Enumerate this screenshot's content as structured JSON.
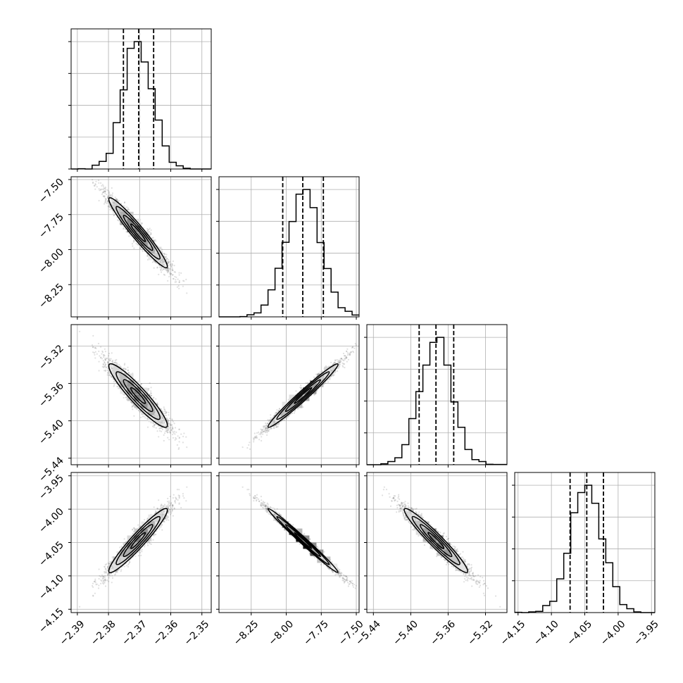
{
  "chart_data": {
    "type": "corner",
    "parameters": [
      {
        "id": "p0",
        "mean": -2.3705,
        "sd": 0.0047,
        "lim": [
          -2.392,
          -2.347
        ],
        "ticks": [
          -2.39,
          -2.38,
          -2.37,
          -2.36,
          -2.35
        ],
        "tick_labels": [
          "−2.39",
          "−2.38",
          "−2.37",
          "−2.36",
          "−2.35"
        ],
        "quantiles": [
          -2.3752,
          -2.3703,
          -2.3655
        ]
      },
      {
        "id": "p1",
        "mean": -7.88,
        "sd": 0.125,
        "lim": [
          -8.48,
          -7.48
        ],
        "ticks": [
          -8.25,
          -8.0,
          -7.75,
          -7.5
        ],
        "tick_labels": [
          "−8.25",
          "−8.00",
          "−7.75",
          "−7.50"
        ],
        "quantiles": [
          -8.025,
          -7.882,
          -7.735
        ]
      },
      {
        "id": "p2",
        "mean": -5.373,
        "sd": 0.017,
        "lim": [
          -5.447,
          -5.297
        ],
        "ticks": [
          -5.44,
          -5.4,
          -5.36,
          -5.32
        ],
        "tick_labels": [
          "−5.44",
          "−5.40",
          "−5.36",
          "−5.32"
        ],
        "quantiles": [
          -5.391,
          -5.373,
          -5.354
        ]
      },
      {
        "id": "p3",
        "mean": -4.047,
        "sd": 0.024,
        "lim": [
          -4.155,
          -3.945
        ],
        "ticks": [
          -4.15,
          -4.1,
          -4.05,
          -4.0,
          -3.95
        ],
        "tick_labels": [
          "−4.15",
          "−4.10",
          "−4.05",
          "−4.00",
          "−3.95"
        ],
        "quantiles": [
          -4.072,
          -4.047,
          -4.022
        ]
      }
    ],
    "correlations": [
      [
        1.0,
        -0.96,
        -0.93,
        0.95
      ],
      [
        -0.96,
        1.0,
        0.98,
        -0.99
      ],
      [
        -0.93,
        0.98,
        1.0,
        -0.96
      ],
      [
        0.95,
        -0.99,
        -0.96,
        1.0
      ]
    ],
    "histogram_bins": 20,
    "samples_shown": 3000,
    "contour_levels_sigma": [
      0.5,
      1.0,
      1.5,
      2.0
    ],
    "grid": true,
    "colors": {
      "line": "#000000",
      "grid": "#b0b0b0",
      "points": "#555555"
    }
  }
}
